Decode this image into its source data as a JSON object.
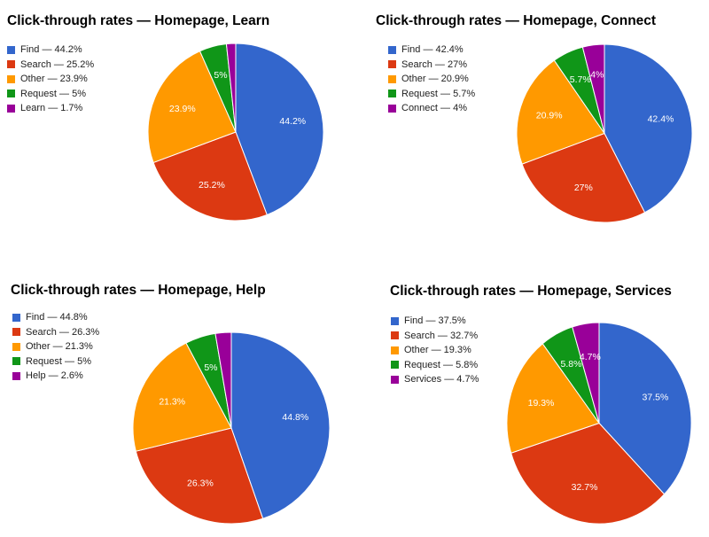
{
  "chart_data": [
    {
      "type": "pie",
      "title": "Click-through rates — Homepage, Learn",
      "slices": [
        {
          "name": "Find",
          "value": 44.2,
          "legend": "Find — 44.2%",
          "label": "44.2%",
          "color": "#3366cc"
        },
        {
          "name": "Search",
          "value": 25.2,
          "legend": "Search — 25.2%",
          "label": "25.2%",
          "color": "#dc3912"
        },
        {
          "name": "Other",
          "value": 23.9,
          "legend": "Other — 23.9%",
          "label": "23.9%",
          "color": "#ff9900"
        },
        {
          "name": "Request",
          "value": 5,
          "legend": "Request — 5%",
          "label": "5%",
          "color": "#109618"
        },
        {
          "name": "Learn",
          "value": 1.7,
          "legend": "Learn — 1.7%",
          "label": "",
          "color": "#990099"
        }
      ]
    },
    {
      "type": "pie",
      "title": "Click-through rates — Homepage, Connect",
      "slices": [
        {
          "name": "Find",
          "value": 42.4,
          "legend": "Find — 42.4%",
          "label": "42.4%",
          "color": "#3366cc"
        },
        {
          "name": "Search",
          "value": 27,
          "legend": "Search — 27%",
          "label": "27%",
          "color": "#dc3912"
        },
        {
          "name": "Other",
          "value": 20.9,
          "legend": "Other — 20.9%",
          "label": "20.9%",
          "color": "#ff9900"
        },
        {
          "name": "Request",
          "value": 5.7,
          "legend": "Request — 5.7%",
          "label": "5.7%",
          "color": "#109618"
        },
        {
          "name": "Connect",
          "value": 4,
          "legend": "Connect — 4%",
          "label": "4%",
          "color": "#990099"
        }
      ]
    },
    {
      "type": "pie",
      "title": "Click-through rates — Homepage, Help",
      "slices": [
        {
          "name": "Find",
          "value": 44.8,
          "legend": "Find — 44.8%",
          "label": "44.8%",
          "color": "#3366cc"
        },
        {
          "name": "Search",
          "value": 26.3,
          "legend": "Search — 26.3%",
          "label": "26.3%",
          "color": "#dc3912"
        },
        {
          "name": "Other",
          "value": 21.3,
          "legend": "Other — 21.3%",
          "label": "21.3%",
          "color": "#ff9900"
        },
        {
          "name": "Request",
          "value": 5,
          "legend": "Request — 5%",
          "label": "5%",
          "color": "#109618"
        },
        {
          "name": "Help",
          "value": 2.6,
          "legend": "Help — 2.6%",
          "label": "",
          "color": "#990099"
        }
      ]
    },
    {
      "type": "pie",
      "title": "Click-through rates — Homepage, Services",
      "slices": [
        {
          "name": "Find",
          "value": 37.5,
          "legend": "Find — 37.5%",
          "label": "37.5%",
          "color": "#3366cc"
        },
        {
          "name": "Search",
          "value": 32.7,
          "legend": "Search — 32.7%",
          "label": "32.7%",
          "color": "#dc3912"
        },
        {
          "name": "Other",
          "value": 19.3,
          "legend": "Other — 19.3%",
          "label": "19.3%",
          "color": "#ff9900"
        },
        {
          "name": "Request",
          "value": 5.8,
          "legend": "Request — 5.8%",
          "label": "5.8%",
          "color": "#109618"
        },
        {
          "name": "Services",
          "value": 4.7,
          "legend": "Services — 4.7%",
          "label": "4.7%",
          "color": "#990099"
        }
      ]
    }
  ]
}
